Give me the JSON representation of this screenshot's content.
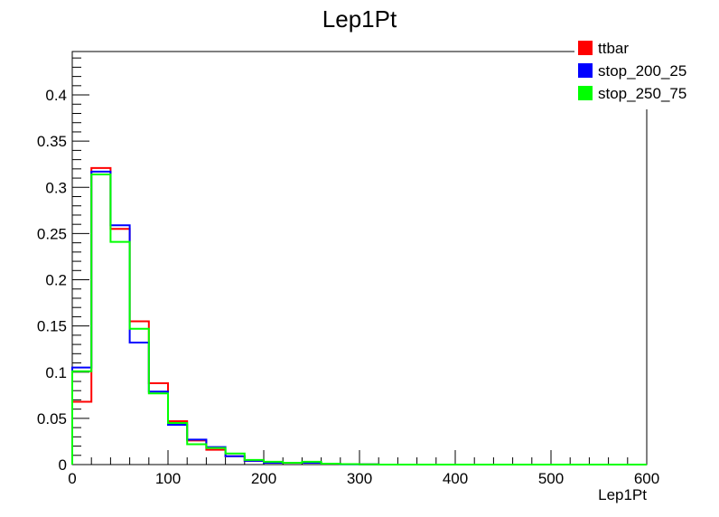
{
  "chart_data": {
    "type": "histogram",
    "title": "Lep1Pt",
    "xlabel": "Lep1Pt",
    "ylabel": "",
    "xlim": [
      0,
      600
    ],
    "ylim": [
      0,
      0.447
    ],
    "x_ticks": [
      "0",
      "100",
      "200",
      "300",
      "400",
      "500",
      "600"
    ],
    "y_ticks": [
      "0",
      "0.05",
      "0.1",
      "0.15",
      "0.2",
      "0.25",
      "0.3",
      "0.35",
      "0.4"
    ],
    "bin_edges": [
      0,
      20,
      40,
      60,
      80,
      100,
      120,
      140,
      160,
      180,
      200,
      220,
      240,
      260,
      280,
      300,
      320
    ],
    "legend_position": "top-right",
    "series": [
      {
        "name": "ttbar",
        "color": "#ff0000",
        "values": [
          0.068,
          0.321,
          0.255,
          0.155,
          0.088,
          0.047,
          0.026,
          0.016,
          0.009,
          0.004,
          0.002,
          0.002,
          0.002,
          0.001,
          0.0005,
          0.0003
        ]
      },
      {
        "name": "stop_200_25",
        "color": "#0000ff",
        "values": [
          0.105,
          0.317,
          0.259,
          0.132,
          0.079,
          0.043,
          0.027,
          0.019,
          0.009,
          0.004,
          0.002,
          0.002,
          0.002,
          0.001,
          0.0003,
          0.0002
        ]
      },
      {
        "name": "stop_250_75",
        "color": "#00ff00",
        "values": [
          0.101,
          0.314,
          0.241,
          0.147,
          0.077,
          0.045,
          0.022,
          0.018,
          0.012,
          0.005,
          0.003,
          0.002,
          0.003,
          0.001,
          0.0005,
          0.0003
        ]
      }
    ]
  }
}
